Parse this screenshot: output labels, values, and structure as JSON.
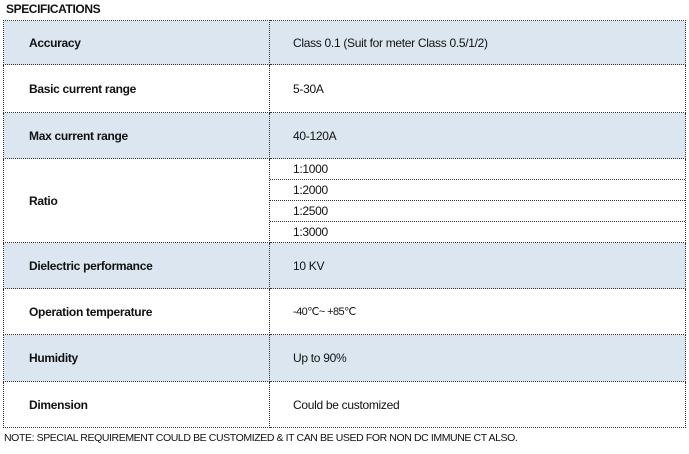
{
  "title": "SPECIFICATIONS",
  "colors": {
    "shaded_row": "#dce6f1",
    "border": "#333333"
  },
  "rows": [
    {
      "label": "Accuracy",
      "value": "Class 0.1 (Suit for meter Class 0.5/1/2)",
      "shaded": true
    },
    {
      "label": "Basic current range",
      "value": "5-30A",
      "shaded": false
    },
    {
      "label": "Max current range",
      "value": "40-120A",
      "shaded": true
    },
    {
      "label": "Ratio",
      "values": [
        "1:1000",
        "1:2000",
        "1:2500",
        "1:3000"
      ],
      "shaded": false
    },
    {
      "label": "Dielectric performance",
      "value": "10 KV",
      "shaded": true
    },
    {
      "label": "Operation temperature",
      "value": "-40℃~ +85℃",
      "shaded": false
    },
    {
      "label": "Humidity",
      "value": "Up to 90%",
      "shaded": true
    },
    {
      "label": "Dimension",
      "value": "Could be customized",
      "shaded": false
    }
  ],
  "note": "NOTE: SPECIAL REQUIREMENT COULD BE CUSTOMIZED & IT CAN BE USED FOR NON DC IMMUNE CT ALSO."
}
